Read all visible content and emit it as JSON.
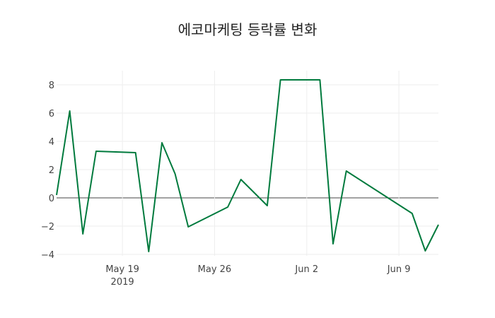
{
  "chart_data": {
    "type": "line",
    "title": "에코마케팅 등락률 변화",
    "xlabel": "",
    "ylabel": "",
    "x": [
      "2019-05-14",
      "2019-05-15",
      "2019-05-16",
      "2019-05-17",
      "2019-05-20",
      "2019-05-21",
      "2019-05-22",
      "2019-05-23",
      "2019-05-24",
      "2019-05-27",
      "2019-05-28",
      "2019-05-30",
      "2019-05-31",
      "2019-06-03",
      "2019-06-04",
      "2019-06-05",
      "2019-06-10",
      "2019-06-11",
      "2019-06-12"
    ],
    "series": [
      {
        "name": "등락률",
        "color": "#007a3d",
        "values": [
          0.2,
          6.15,
          -2.55,
          3.3,
          3.2,
          -3.8,
          3.9,
          1.7,
          -2.05,
          -0.65,
          1.3,
          -0.55,
          8.35,
          8.35,
          -3.25,
          1.9,
          -1.1,
          -3.75,
          -1.9
        ]
      }
    ],
    "xlim": [
      "2019-05-14",
      "2019-06-12"
    ],
    "ylim": [
      -4.1,
      9.0
    ],
    "yticks": [
      -4,
      -2,
      0,
      2,
      4,
      6,
      8
    ],
    "yticklabels": [
      "−4",
      "−2",
      "0",
      "2",
      "4",
      "6",
      "8"
    ],
    "xticks": [
      "2019-05-19",
      "2019-05-26",
      "2019-06-02",
      "2019-06-09"
    ],
    "xticklabels": [
      "May 19",
      "May 26",
      "Jun 2",
      "Jun 9"
    ],
    "xtick_year": "2019",
    "grid": true,
    "zeroline": true
  }
}
